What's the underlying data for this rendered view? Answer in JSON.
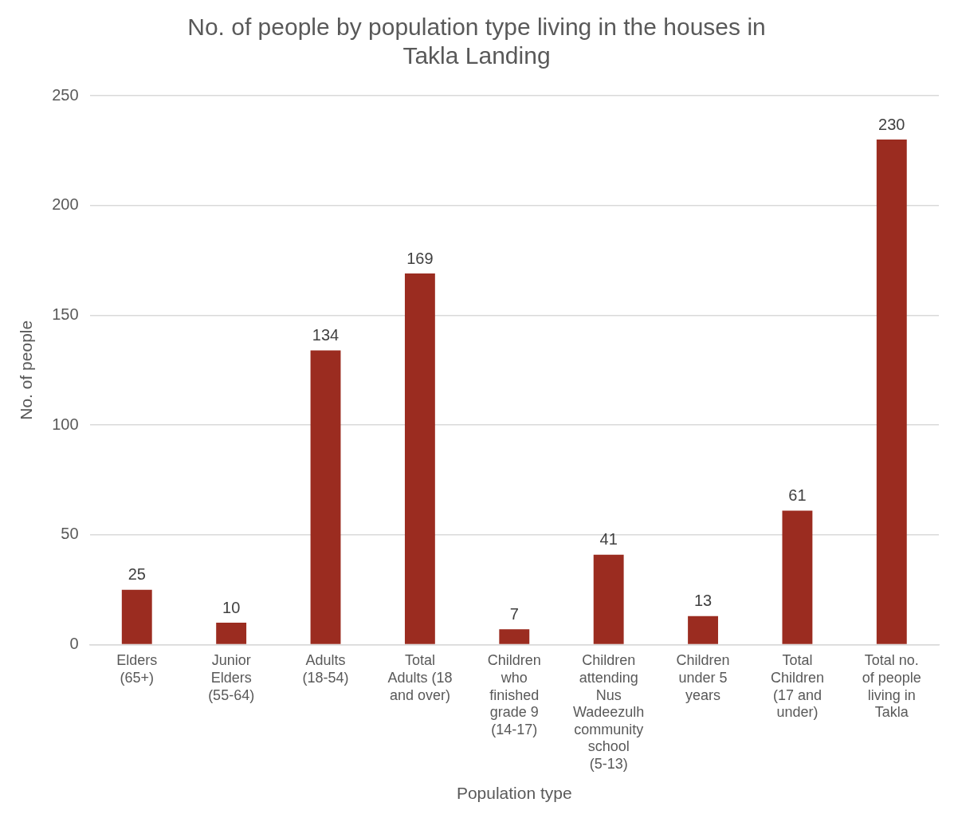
{
  "chart_data": {
    "type": "bar",
    "title": "No. of people by population type living in the houses in Takla Landing",
    "xlabel": "Population type",
    "ylabel": "No. of people",
    "categories": [
      "Elders (65+)",
      "Junior Elders (55-64)",
      "Adults (18-54)",
      "Total Adults (18 and over)",
      "Children who finished grade 9 (14-17)",
      "Children attending Nus Wadeezulh community school (5-13)",
      "Children under 5 years",
      "Total Children (17 and under)",
      "Total no. of people living in Takla"
    ],
    "values": [
      25,
      10,
      134,
      169,
      7,
      41,
      13,
      61,
      230
    ],
    "color": "#9b2c20",
    "ylim": [
      0,
      250
    ],
    "yticks": [
      0,
      50,
      100,
      150,
      200,
      250
    ],
    "grid": "y",
    "legend": false,
    "data_labels": true
  }
}
